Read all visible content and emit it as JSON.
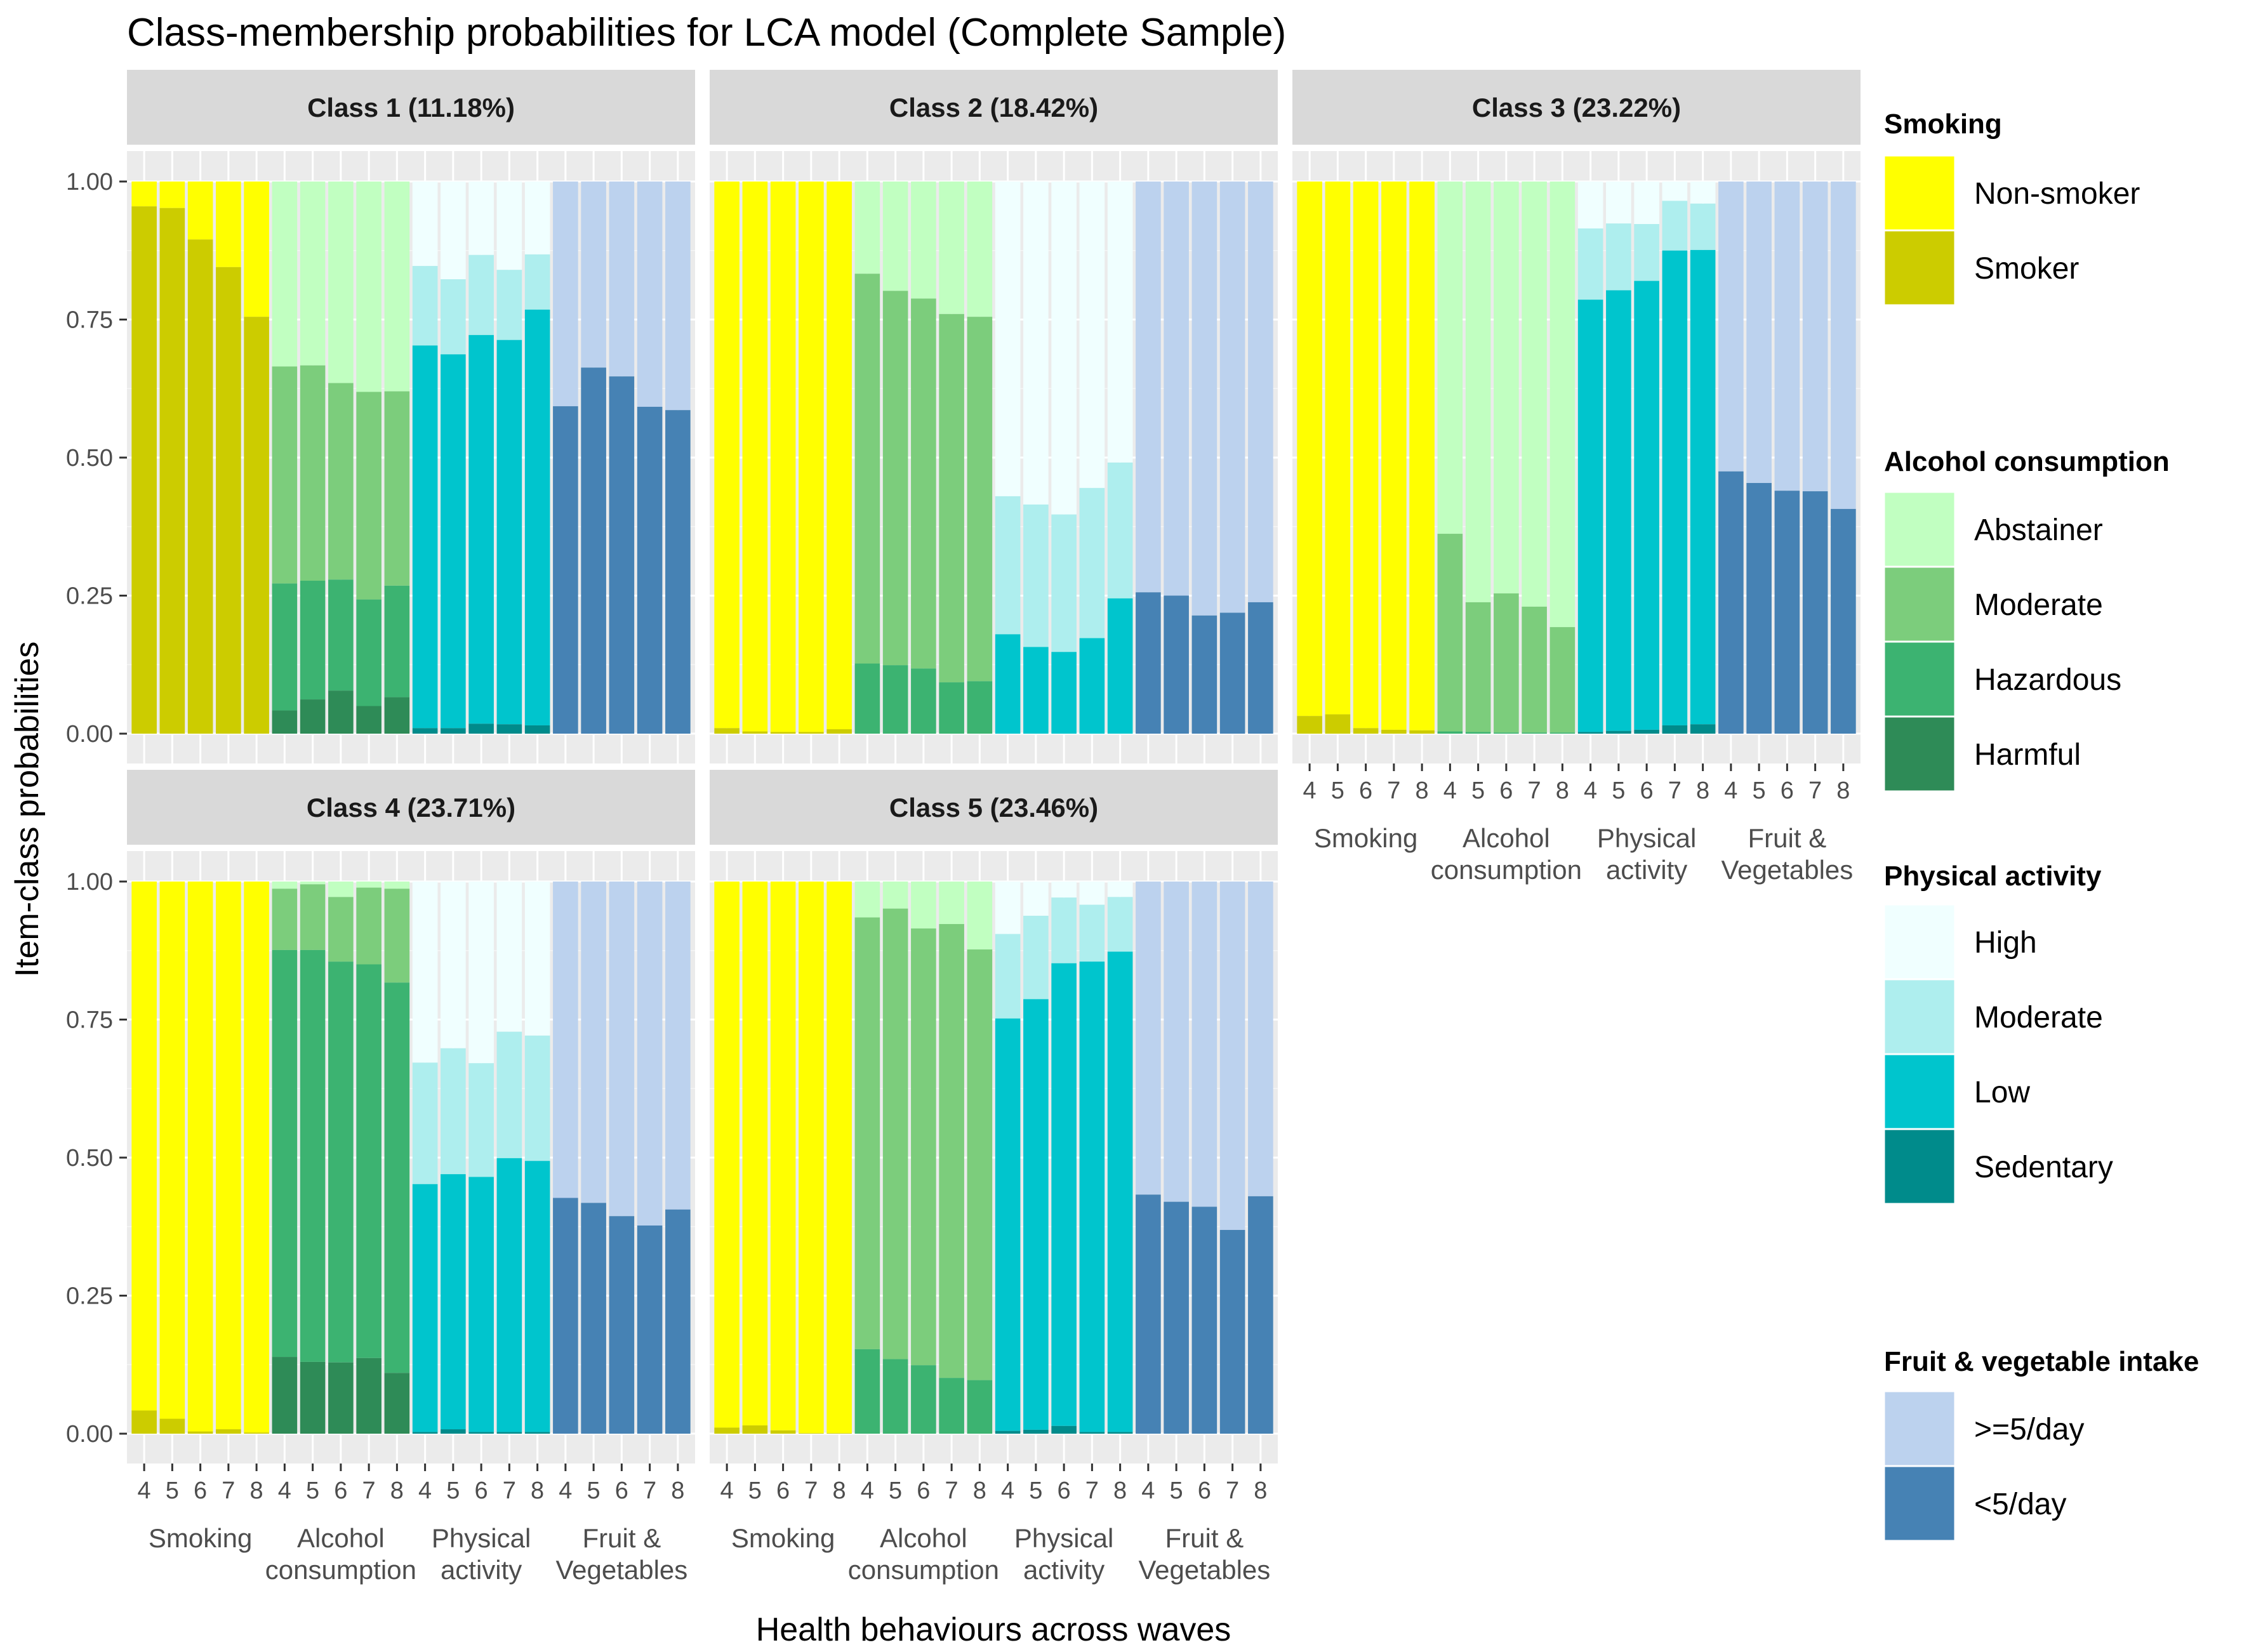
{
  "chart_data": {
    "type": "bar",
    "title": "Class-membership probabilities for LCA model (Complete Sample)",
    "xlabel": "Health behaviours across waves",
    "ylabel": "Item-class probabilities",
    "ylim": [
      0,
      1
    ],
    "y_ticks": [
      "0.00",
      "0.25",
      "0.50",
      "0.75",
      "1.00"
    ],
    "waves": [
      "4",
      "5",
      "6",
      "7",
      "8"
    ],
    "groups": [
      {
        "key": "smoking",
        "label_lines": [
          "Smoking"
        ]
      },
      {
        "key": "alcohol",
        "label_lines": [
          "Alcohol",
          "consumption"
        ]
      },
      {
        "key": "activity",
        "label_lines": [
          "Physical",
          "activity"
        ]
      },
      {
        "key": "fruit",
        "label_lines": [
          "Fruit &",
          "Vegetables"
        ]
      }
    ],
    "colors": {
      "smoking": [
        "#FFFF00",
        "#CCCC00"
      ],
      "alcohol": [
        "#C1FFC1",
        "#7CCD7C",
        "#3CB371",
        "#2E8B57"
      ],
      "activity": [
        "#F0FFFF",
        "#AEEEEE",
        "#00C5CD",
        "#008B8B"
      ],
      "fruit": [
        "#BCD2EE",
        "#4682B4"
      ]
    },
    "legend": [
      {
        "title": "Smoking",
        "items": [
          "Non-smoker",
          "Smoker"
        ]
      },
      {
        "title": "Alcohol consumption",
        "items": [
          "Abstainer",
          "Moderate",
          "Hazardous",
          "Harmful"
        ]
      },
      {
        "title": "Physical activity",
        "items": [
          "High",
          "Moderate",
          "Low",
          "Sedentary"
        ]
      },
      {
        "title": "Fruit & vegetable intake",
        "items": [
          ">=5/day",
          "<5/day"
        ]
      }
    ],
    "panels": [
      {
        "label": "Class 1 (11.18%)",
        "smoking": [
          0.955,
          0.952,
          0.895,
          0.845,
          0.755
        ],
        "alcohol": [
          [
            0.665,
            0.272,
            0.042
          ],
          [
            0.667,
            0.277,
            0.062
          ],
          [
            0.635,
            0.279,
            0.078
          ],
          [
            0.619,
            0.243,
            0.05
          ],
          [
            0.62,
            0.268,
            0.066
          ]
        ],
        "activity": [
          [
            0.847,
            0.703,
            0.01
          ],
          [
            0.823,
            0.687,
            0.01
          ],
          [
            0.867,
            0.722,
            0.018
          ],
          [
            0.84,
            0.713,
            0.017
          ],
          [
            0.868,
            0.768,
            0.015
          ]
        ],
        "fruit": [
          0.593,
          0.663,
          0.647,
          0.592,
          0.586
        ]
      },
      {
        "label": "Class 2 (18.42%)",
        "smoking": [
          0.01,
          0.004,
          0.003,
          0.003,
          0.008
        ],
        "alcohol": [
          [
            0.833,
            0.127,
            0.0
          ],
          [
            0.802,
            0.124,
            0.0
          ],
          [
            0.788,
            0.118,
            0.0
          ],
          [
            0.76,
            0.093,
            0.0
          ],
          [
            0.755,
            0.095,
            0.0
          ]
        ],
        "activity": [
          [
            0.43,
            0.18,
            0.0
          ],
          [
            0.415,
            0.157,
            0.0
          ],
          [
            0.397,
            0.148,
            0.0
          ],
          [
            0.445,
            0.173,
            0.0
          ],
          [
            0.491,
            0.245,
            0.0
          ]
        ],
        "fruit": [
          0.256,
          0.25,
          0.214,
          0.219,
          0.238
        ]
      },
      {
        "label": "Class 3 (23.22%)",
        "smoking": [
          0.032,
          0.035,
          0.01,
          0.007,
          0.006
        ],
        "alcohol": [
          [
            0.362,
            0.004,
            0.0
          ],
          [
            0.238,
            0.003,
            0.0
          ],
          [
            0.254,
            0.002,
            0.0
          ],
          [
            0.23,
            0.002,
            0.0
          ],
          [
            0.193,
            0.002,
            0.0
          ]
        ],
        "activity": [
          [
            0.915,
            0.786,
            0.003
          ],
          [
            0.924,
            0.803,
            0.005
          ],
          [
            0.923,
            0.82,
            0.007
          ],
          [
            0.965,
            0.875,
            0.015
          ],
          [
            0.96,
            0.876,
            0.017
          ]
        ],
        "fruit": [
          0.475,
          0.454,
          0.44,
          0.439,
          0.407
        ]
      },
      {
        "label": "Class 4 (23.71%)",
        "smoking": [
          0.042,
          0.027,
          0.004,
          0.008,
          0.002
        ],
        "alcohol": [
          [
            0.987,
            0.876,
            0.139
          ],
          [
            0.995,
            0.876,
            0.13
          ],
          [
            0.972,
            0.855,
            0.129
          ],
          [
            0.989,
            0.85,
            0.137
          ],
          [
            0.987,
            0.817,
            0.11
          ]
        ],
        "activity": [
          [
            0.672,
            0.452,
            0.003
          ],
          [
            0.698,
            0.47,
            0.008
          ],
          [
            0.671,
            0.465,
            0.003
          ],
          [
            0.728,
            0.499,
            0.003
          ],
          [
            0.721,
            0.494,
            0.003
          ]
        ],
        "fruit": [
          0.427,
          0.418,
          0.394,
          0.377,
          0.406
        ]
      },
      {
        "label": "Class 5 (23.46%)",
        "smoking": [
          0.011,
          0.015,
          0.006,
          0.001,
          0.001
        ],
        "alcohol": [
          [
            0.935,
            0.153,
            0.0
          ],
          [
            0.951,
            0.135,
            0.0
          ],
          [
            0.915,
            0.124,
            0.0
          ],
          [
            0.923,
            0.101,
            0.0
          ],
          [
            0.877,
            0.097,
            0.0
          ]
        ],
        "activity": [
          [
            0.905,
            0.752,
            0.005
          ],
          [
            0.938,
            0.787,
            0.007
          ],
          [
            0.971,
            0.852,
            0.014
          ],
          [
            0.958,
            0.855,
            0.003
          ],
          [
            0.972,
            0.873,
            0.003
          ]
        ],
        "fruit": [
          0.433,
          0.42,
          0.411,
          0.369,
          0.43
        ]
      }
    ]
  }
}
